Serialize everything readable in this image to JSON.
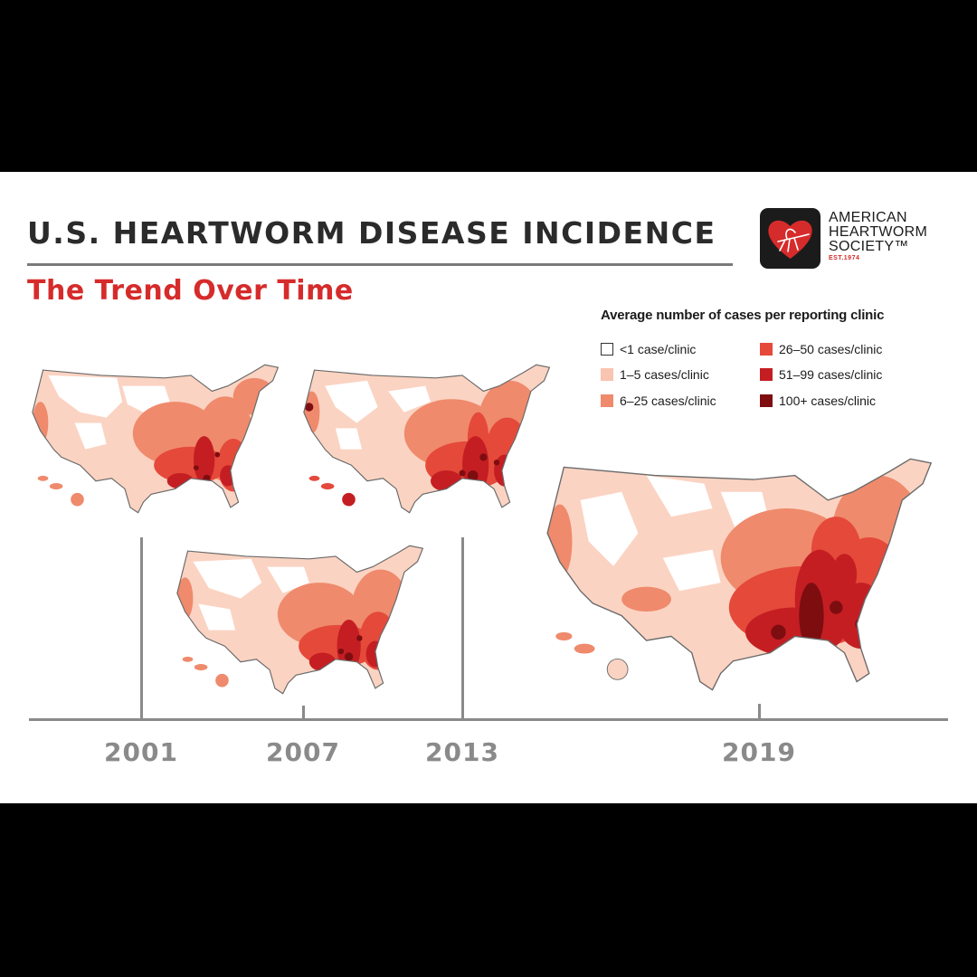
{
  "header": {
    "title": "U.S. HEARTWORM DISEASE INCIDENCE",
    "subtitle": "The Trend Over Time"
  },
  "logo": {
    "line1": "AMERICAN",
    "line2": "HEARTWORM",
    "line3": "SOCIETY™",
    "est": "EST.1974"
  },
  "legend": {
    "title": "Average number of cases per reporting clinic",
    "items": [
      {
        "label": "<1 case/clinic",
        "color": "#ffffff"
      },
      {
        "label": "1–5 cases/clinic",
        "color": "#f9c4b0"
      },
      {
        "label": "6–25 cases/clinic",
        "color": "#ef8a6c"
      },
      {
        "label": "26–50 cases/clinic",
        "color": "#e5493a"
      },
      {
        "label": "51–99 cases/clinic",
        "color": "#c41e23"
      },
      {
        "label": "100+ cases/clinic",
        "color": "#7e0d10"
      }
    ]
  },
  "timeline": {
    "years": [
      "2001",
      "2007",
      "2013",
      "2019"
    ]
  }
}
